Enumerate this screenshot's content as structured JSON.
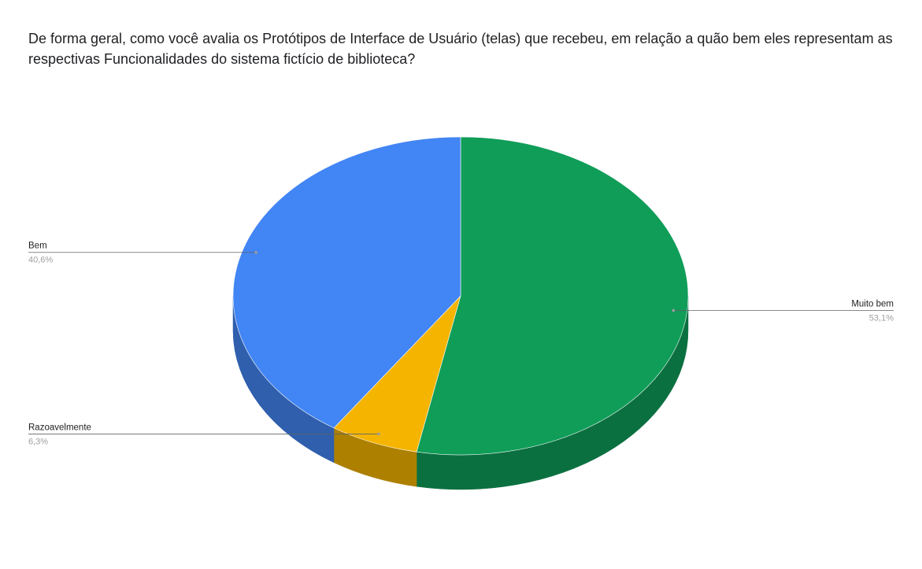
{
  "chart_data": {
    "type": "pie",
    "title": "De forma geral, como você avalia os Protótipos de Interface de Usuário (telas) que recebeu, em relação a quão bem eles representam as respectivas Funcionalidades do sistema fictício de biblioteca?",
    "three_d": true,
    "legend": "labels-with-leader-lines",
    "slices": [
      {
        "label": "Muito bem",
        "value": 53.1,
        "value_label": "53,1%",
        "color": "#0f9d58",
        "side_color": "#0b7040"
      },
      {
        "label": "Razoavelmente",
        "value": 6.3,
        "value_label": "6,3%",
        "color": "#f4b400",
        "side_color": "#ad8000"
      },
      {
        "label": "Bem",
        "value": 40.6,
        "value_label": "40,6%",
        "color": "#4285f4",
        "side_color": "#2f5fad"
      }
    ]
  }
}
